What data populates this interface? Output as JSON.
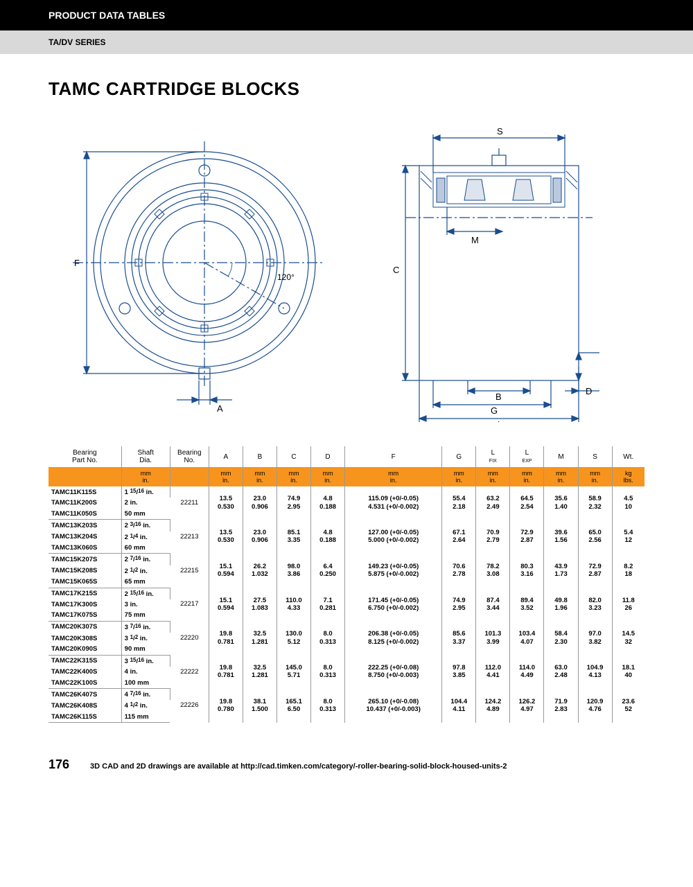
{
  "header": {
    "black": "PRODUCT DATA TABLES",
    "gray": "TA/DV SERIES"
  },
  "title": "TAMC CARTRIDGE BLOCKS",
  "diagram": {
    "left_labels": {
      "F": "F",
      "A": "A",
      "angle": "120°"
    },
    "right_labels": {
      "S": "S",
      "M": "M",
      "C": "C",
      "B": "B",
      "D": "D",
      "G": "G",
      "L": "L"
    }
  },
  "table": {
    "columns": [
      {
        "h": "Bearing\nPart No.",
        "u": ""
      },
      {
        "h": "Shaft\nDia.",
        "u": "mm\nin."
      },
      {
        "h": "Bearing\nNo.",
        "u": ""
      },
      {
        "h": "A",
        "u": "mm\nin."
      },
      {
        "h": "B",
        "u": "mm\nin."
      },
      {
        "h": "C",
        "u": "mm\nin."
      },
      {
        "h": "D",
        "u": "mm\nin."
      },
      {
        "h": "F",
        "u": "mm\nin."
      },
      {
        "h": "G",
        "u": "mm\nin."
      },
      {
        "h": "L FIX",
        "u": "mm\nin."
      },
      {
        "h": "L EXP",
        "u": "mm\nin."
      },
      {
        "h": "M",
        "u": "mm\nin."
      },
      {
        "h": "S",
        "u": "mm\nin."
      },
      {
        "h": "Wt.",
        "u": "kg\nlbs."
      }
    ],
    "groups": [
      {
        "parts": [
          [
            "TAMC11K115S",
            "1 15/16 in."
          ],
          [
            "TAMC11K200S",
            "2 in."
          ],
          [
            "TAMC11K050S",
            "50 mm"
          ]
        ],
        "bearing": "22211",
        "vals": [
          [
            "13.5",
            "0.530"
          ],
          [
            "23.0",
            "0.906"
          ],
          [
            "74.9",
            "2.95"
          ],
          [
            "4.8",
            "0.188"
          ],
          [
            "115.09 (+0/-0.05)",
            "4.531 (+0/-0.002)"
          ],
          [
            "55.4",
            "2.18"
          ],
          [
            "63.2",
            "2.49"
          ],
          [
            "64.5",
            "2.54"
          ],
          [
            "35.6",
            "1.40"
          ],
          [
            "58.9",
            "2.32"
          ],
          [
            "4.5",
            "10"
          ]
        ]
      },
      {
        "parts": [
          [
            "TAMC13K203S",
            "2 3/16 in."
          ],
          [
            "TAMC13K204S",
            "2 1/4 in."
          ],
          [
            "TAMC13K060S",
            "60 mm"
          ]
        ],
        "bearing": "22213",
        "vals": [
          [
            "13.5",
            "0.530"
          ],
          [
            "23.0",
            "0.906"
          ],
          [
            "85.1",
            "3.35"
          ],
          [
            "4.8",
            "0.188"
          ],
          [
            "127.00 (+0/-0.05)",
            "5.000 (+0/-0.002)"
          ],
          [
            "67.1",
            "2.64"
          ],
          [
            "70.9",
            "2.79"
          ],
          [
            "72.9",
            "2.87"
          ],
          [
            "39.6",
            "1.56"
          ],
          [
            "65.0",
            "2.56"
          ],
          [
            "5.4",
            "12"
          ]
        ]
      },
      {
        "parts": [
          [
            "TAMC15K207S",
            "2 7/16 in."
          ],
          [
            "TAMC15K208S",
            "2 1/2 in."
          ],
          [
            "TAMC15K065S",
            "65 mm"
          ]
        ],
        "bearing": "22215",
        "vals": [
          [
            "15.1",
            "0.594"
          ],
          [
            "26.2",
            "1.032"
          ],
          [
            "98.0",
            "3.86"
          ],
          [
            "6.4",
            "0.250"
          ],
          [
            "149.23 (+0/-0.05)",
            "5.875 (+0/-0.002)"
          ],
          [
            "70.6",
            "2.78"
          ],
          [
            "78.2",
            "3.08"
          ],
          [
            "80.3",
            "3.16"
          ],
          [
            "43.9",
            "1.73"
          ],
          [
            "72.9",
            "2.87"
          ],
          [
            "8.2",
            "18"
          ]
        ]
      },
      {
        "parts": [
          [
            "TAMC17K215S",
            "2 15/16 in."
          ],
          [
            "TAMC17K300S",
            "3 in."
          ],
          [
            "TAMC17K075S",
            "75 mm"
          ]
        ],
        "bearing": "22217",
        "vals": [
          [
            "15.1",
            "0.594"
          ],
          [
            "27.5",
            "1.083"
          ],
          [
            "110.0",
            "4.33"
          ],
          [
            "7.1",
            "0.281"
          ],
          [
            "171.45 (+0/-0.05)",
            "6.750 (+0/-0.002)"
          ],
          [
            "74.9",
            "2.95"
          ],
          [
            "87.4",
            "3.44"
          ],
          [
            "89.4",
            "3.52"
          ],
          [
            "49.8",
            "1.96"
          ],
          [
            "82.0",
            "3.23"
          ],
          [
            "11.8",
            "26"
          ]
        ]
      },
      {
        "parts": [
          [
            "TAMC20K307S",
            "3 7/16 in."
          ],
          [
            "TAMC20K308S",
            "3 1/2 in."
          ],
          [
            "TAMC20K090S",
            "90 mm"
          ]
        ],
        "bearing": "22220",
        "vals": [
          [
            "19.8",
            "0.781"
          ],
          [
            "32.5",
            "1.281"
          ],
          [
            "130.0",
            "5.12"
          ],
          [
            "8.0",
            "0.313"
          ],
          [
            "206.38 (+0/-0.05)",
            "8.125 (+0/-0.002)"
          ],
          [
            "85.6",
            "3.37"
          ],
          [
            "101.3",
            "3.99"
          ],
          [
            "103.4",
            "4.07"
          ],
          [
            "58.4",
            "2.30"
          ],
          [
            "97.0",
            "3.82"
          ],
          [
            "14.5",
            "32"
          ]
        ]
      },
      {
        "parts": [
          [
            "TAMC22K315S",
            "3 15/16 in."
          ],
          [
            "TAMC22K400S",
            "4 in."
          ],
          [
            "TAMC22K100S",
            "100 mm"
          ]
        ],
        "bearing": "22222",
        "vals": [
          [
            "19.8",
            "0.781"
          ],
          [
            "32.5",
            "1.281"
          ],
          [
            "145.0",
            "5.71"
          ],
          [
            "8.0",
            "0.313"
          ],
          [
            "222.25 (+0/-0.08)",
            "8.750 (+0/-0.003)"
          ],
          [
            "97.8",
            "3.85"
          ],
          [
            "112.0",
            "4.41"
          ],
          [
            "114.0",
            "4.49"
          ],
          [
            "63.0",
            "2.48"
          ],
          [
            "104.9",
            "4.13"
          ],
          [
            "18.1",
            "40"
          ]
        ]
      },
      {
        "parts": [
          [
            "TAMC26K407S",
            "4 7/16 in."
          ],
          [
            "TAMC26K408S",
            "4 1/2 in."
          ],
          [
            "TAMC26K115S",
            "115 mm"
          ]
        ],
        "bearing": "22226",
        "vals": [
          [
            "19.8",
            "0.780"
          ],
          [
            "38.1",
            "1.500"
          ],
          [
            "165.1",
            "6.50"
          ],
          [
            "8.0",
            "0.313"
          ],
          [
            "265.10 (+0/-0.08)",
            "10.437 (+0/-0.003)"
          ],
          [
            "104.4",
            "4.11"
          ],
          [
            "124.2",
            "4.89"
          ],
          [
            "126.2",
            "4.97"
          ],
          [
            "71.9",
            "2.83"
          ],
          [
            "120.9",
            "4.76"
          ],
          [
            "23.6",
            "52"
          ]
        ]
      }
    ]
  },
  "footer": {
    "page": "176",
    "text": "3D CAD and 2D drawings are available at http://cad.timken.com/category/-roller-bearing-solid-block-housed-units-2"
  }
}
